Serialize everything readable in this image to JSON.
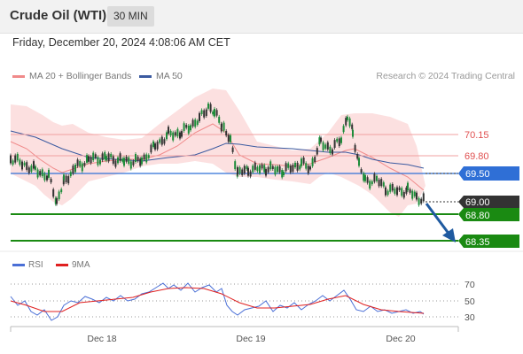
{
  "header": {
    "title": "Crude Oil (WTI)",
    "timeframe": "30 MIN"
  },
  "datetime": "Friday, December 20, 2024 4:08:06 AM CET",
  "legend": {
    "items": [
      {
        "label": "MA 20 + Bollinger Bands",
        "color": "#f08a8a"
      },
      {
        "label": "MA 50",
        "color": "#3b5aa0"
      }
    ],
    "credit": "Research © 2024 Trading Central"
  },
  "price_levels": [
    {
      "label": "70.15",
      "value": 70.15,
      "kind": "resistance"
    },
    {
      "label": "69.80",
      "value": 69.8,
      "kind": "resistance"
    },
    {
      "label": "69.50",
      "value": 69.5,
      "kind": "pivot"
    },
    {
      "label": "69.00",
      "value": 69.0,
      "kind": "last"
    },
    {
      "label": "68.80",
      "value": 68.8,
      "kind": "support"
    },
    {
      "label": "68.35",
      "value": 68.35,
      "kind": "support"
    }
  ],
  "rsi_legend": {
    "rsi_label": "RSI",
    "ma_label": "9MA"
  },
  "rsi_levels": [
    "70",
    "50",
    "30"
  ],
  "x_axis": {
    "labels": [
      "Dec 18",
      "Dec 19",
      "Dec 20"
    ]
  },
  "colors": {
    "up": "#1e8c3a",
    "down": "#333333",
    "pivot": "#2f6fd6",
    "support": "#1a8a12",
    "resistance": "#e05050",
    "arrow": "#1f5aa0"
  }
}
